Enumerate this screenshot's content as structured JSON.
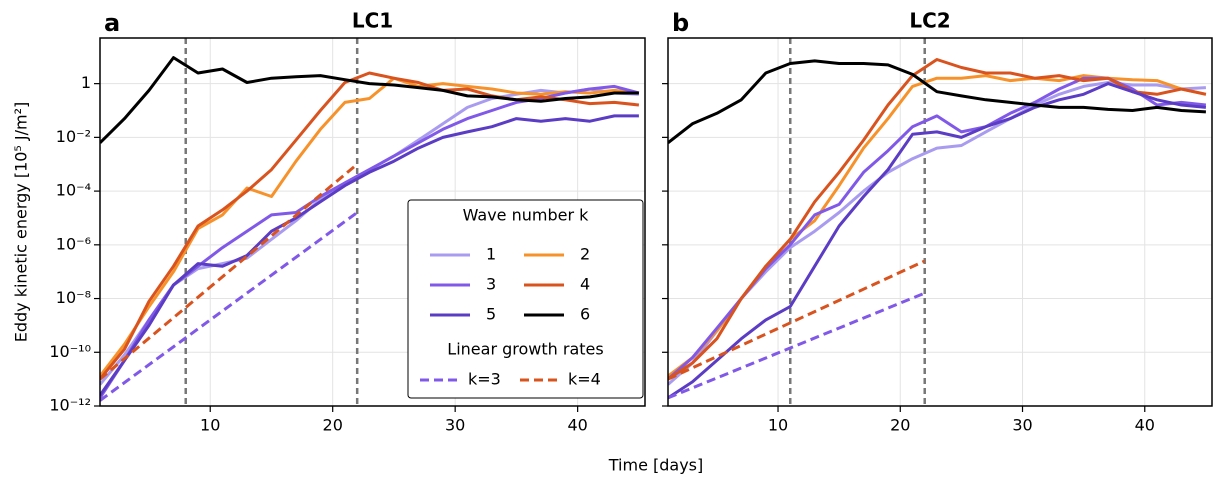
{
  "xlabel": "Time [days]",
  "ylabel": "Eddy kinetic energy [10⁵ J/m²]",
  "chart_data": [
    {
      "type": "line",
      "panel_label": "a",
      "title": "LC1",
      "x": [
        1,
        3,
        5,
        7,
        9,
        11,
        13,
        15,
        17,
        19,
        21,
        23,
        25,
        27,
        29,
        31,
        33,
        35,
        37,
        39,
        41,
        43,
        45
      ],
      "xlim": [
        1,
        45.5
      ],
      "xticks": [
        10,
        20,
        30,
        40
      ],
      "ylim": [
        1e-12,
        50
      ],
      "log_y": true,
      "grid": true,
      "ytick_labels": true,
      "yticks": [
        {
          "value": 1e-12,
          "label": "10⁻¹²"
        },
        {
          "value": 1e-10,
          "label": "10⁻¹⁰"
        },
        {
          "value": 1e-08,
          "label": "10⁻⁸"
        },
        {
          "value": 1e-06,
          "label": "10⁻⁶"
        },
        {
          "value": 0.0001,
          "label": "10⁻⁴"
        },
        {
          "value": 0.01,
          "label": "10⁻²"
        },
        1
      ],
      "vlines": [
        8,
        22
      ],
      "legend": {
        "title": "Wave number k",
        "subtitle": "Linear growth rates",
        "loc": "lower right"
      },
      "series": [
        {
          "name": "1",
          "color": "#a99bef",
          "values": [
            6.3e-12,
            7.9e-11,
            1.6e-09,
            3.2e-08,
            1.3e-07,
            2e-07,
            3.2e-07,
            1.6e-06,
            7.9e-06,
            5e-05,
            0.0002,
            0.00063,
            0.002,
            0.0079,
            0.032,
            0.13,
            0.28,
            0.4,
            0.56,
            0.45,
            0.63,
            0.45,
            0.4
          ]
        },
        {
          "name": "2",
          "color": "#f7922a",
          "values": [
            1.3e-11,
            2e-10,
            5e-09,
            1e-07,
            4e-06,
            1.3e-05,
            0.00013,
            6.3e-05,
            0.0013,
            0.02,
            0.2,
            0.28,
            1.6,
            0.79,
            1,
            0.79,
            0.63,
            0.45,
            0.4,
            0.5,
            0.45,
            0.56,
            0.45
          ]
        },
        {
          "name": "3",
          "color": "#8159e8",
          "values": [
            2e-12,
            5e-11,
            1.6e-09,
            3.2e-08,
            1.6e-07,
            7.9e-07,
            3.2e-06,
            1.3e-05,
            1.6e-05,
            6.3e-05,
            0.0002,
            0.00063,
            0.002,
            0.0063,
            0.02,
            0.05,
            0.1,
            0.2,
            0.28,
            0.45,
            0.63,
            0.79,
            0.45
          ]
        },
        {
          "name": "4",
          "color": "#d9531e",
          "values": [
            1e-11,
            1.3e-10,
            7.9e-09,
            1.6e-07,
            5e-06,
            2e-05,
            0.0001,
            0.00063,
            0.0079,
            0.1,
            1.1,
            2.5,
            1.6,
            1.1,
            0.56,
            0.63,
            0.35,
            0.25,
            0.32,
            0.25,
            0.18,
            0.2,
            0.16
          ]
        },
        {
          "name": "5",
          "color": "#5b3cc4",
          "values": [
            2.5e-12,
            5e-11,
            1e-09,
            3.2e-08,
            2e-07,
            1.6e-07,
            4e-07,
            3.2e-06,
            1e-05,
            4e-05,
            0.00016,
            0.0005,
            0.0013,
            0.004,
            0.01,
            0.016,
            0.025,
            0.05,
            0.04,
            0.05,
            0.04,
            0.063,
            0.063
          ]
        },
        {
          "name": "6",
          "color": "#000000",
          "values": [
            0.0063,
            0.05,
            0.56,
            9.3,
            2.5,
            3.5,
            1.1,
            1.6,
            1.8,
            2,
            1.4,
            1,
            0.89,
            0.71,
            0.56,
            0.35,
            0.32,
            0.25,
            0.22,
            0.28,
            0.32,
            0.45,
            0.45
          ]
        },
        {
          "name": "k=3",
          "color": "#8159e8",
          "dashed": true,
          "x": [
            1,
            22
          ],
          "values": [
            1.6e-12,
            1.6e-05
          ]
        },
        {
          "name": "k=4",
          "color": "#d9531e",
          "dashed": true,
          "x": [
            1,
            22
          ],
          "values": [
            1e-11,
            0.001
          ]
        }
      ]
    },
    {
      "type": "line",
      "panel_label": "b",
      "title": "LC2",
      "x": [
        1,
        3,
        5,
        7,
        9,
        11,
        13,
        15,
        17,
        19,
        21,
        23,
        25,
        27,
        29,
        31,
        33,
        35,
        37,
        39,
        41,
        43,
        45
      ],
      "xlim": [
        1,
        45.5
      ],
      "xticks": [
        10,
        20,
        30,
        40
      ],
      "ylim": [
        1e-12,
        50
      ],
      "log_y": true,
      "grid": true,
      "ytick_labels": false,
      "yticks": [
        1e-12,
        1e-10,
        1e-08,
        1e-06,
        0.0001,
        0.01,
        1
      ],
      "vlines": [
        11,
        22
      ],
      "series": [
        {
          "color": "#a99bef",
          "values": [
            6.3e-12,
            4e-11,
            6.3e-10,
            1e-08,
            1e-07,
            7.9e-07,
            3.2e-06,
            1.6e-05,
            0.0001,
            0.0005,
            0.0016,
            0.004,
            0.005,
            0.016,
            0.05,
            0.16,
            0.4,
            0.79,
            1.1,
            0.89,
            0.89,
            0.63,
            0.71
          ]
        },
        {
          "color": "#f7922a",
          "values": [
            1.3e-11,
            6.3e-11,
            6.3e-10,
            1e-08,
            1.6e-07,
            1.6e-06,
            7.9e-06,
            0.00016,
            0.004,
            0.05,
            0.79,
            1.6,
            1.6,
            2,
            1.3,
            1.6,
            1.3,
            2,
            1.6,
            1.4,
            1.3,
            0.63,
            0.4
          ]
        },
        {
          "color": "#8159e8",
          "values": [
            1e-11,
            6.3e-11,
            7.9e-10,
            1e-08,
            1.3e-07,
            1e-06,
            1.3e-05,
            3.2e-05,
            0.0005,
            0.0032,
            0.025,
            0.063,
            0.016,
            0.025,
            0.079,
            0.2,
            0.63,
            1.6,
            1.6,
            0.63,
            0.16,
            0.2,
            0.16
          ]
        },
        {
          "color": "#d9531e",
          "values": [
            1e-11,
            4e-11,
            3.2e-10,
            1e-08,
            1.6e-07,
            1.6e-06,
            4e-05,
            0.0005,
            0.0079,
            0.16,
            2,
            7.9,
            4,
            2.5,
            2.5,
            1.6,
            2,
            1.3,
            1.6,
            0.5,
            0.4,
            0.63,
            0.4
          ]
        },
        {
          "color": "#5b3cc4",
          "values": [
            2e-12,
            7.9e-12,
            5e-11,
            3.2e-10,
            1.6e-09,
            5e-09,
            1.6e-07,
            5e-06,
            6.3e-05,
            0.00063,
            0.013,
            0.016,
            0.01,
            0.025,
            0.05,
            0.13,
            0.25,
            0.4,
            1,
            0.5,
            0.25,
            0.16,
            0.13
          ]
        },
        {
          "color": "#000000",
          "values": [
            0.0063,
            0.032,
            0.079,
            0.25,
            2.5,
            5.6,
            7,
            5.6,
            5.6,
            5,
            2.2,
            0.5,
            0.35,
            0.25,
            0.2,
            0.16,
            0.13,
            0.13,
            0.11,
            0.1,
            0.13,
            0.1,
            0.089
          ]
        },
        {
          "color": "#8159e8",
          "dashed": true,
          "x": [
            1,
            22
          ],
          "values": [
            2e-12,
            1.6e-08
          ]
        },
        {
          "color": "#d9531e",
          "dashed": true,
          "x": [
            1,
            22
          ],
          "values": [
            1e-11,
            2.5e-07
          ]
        }
      ]
    }
  ]
}
